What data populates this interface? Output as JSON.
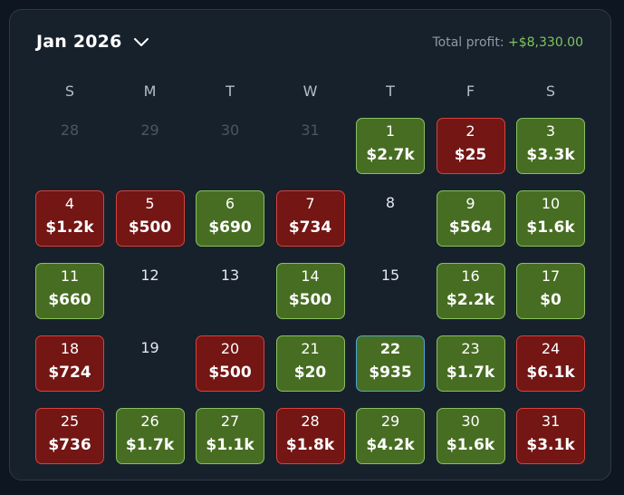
{
  "header": {
    "month_label": "Jan 2026",
    "profit_label": "Total profit:",
    "profit_value": "+$8,330.00"
  },
  "weekdays": [
    "S",
    "M",
    "T",
    "W",
    "T",
    "F",
    "S"
  ],
  "colors": {
    "win_bg": "#476d22",
    "win_border": "#88c060",
    "loss_bg": "#731614",
    "loss_border": "#d4433c",
    "today_border": "#4fa6d4",
    "profit_text": "#7fc560"
  },
  "weeks": [
    [
      {
        "day": "28",
        "status": "other"
      },
      {
        "day": "29",
        "status": "other"
      },
      {
        "day": "30",
        "status": "other"
      },
      {
        "day": "31",
        "status": "other"
      },
      {
        "day": "1",
        "status": "win",
        "amount": "$2.7k"
      },
      {
        "day": "2",
        "status": "loss",
        "amount": "$25"
      },
      {
        "day": "3",
        "status": "win",
        "amount": "$3.3k"
      }
    ],
    [
      {
        "day": "4",
        "status": "loss",
        "amount": "$1.2k"
      },
      {
        "day": "5",
        "status": "loss",
        "amount": "$500"
      },
      {
        "day": "6",
        "status": "win",
        "amount": "$690"
      },
      {
        "day": "7",
        "status": "loss",
        "amount": "$734"
      },
      {
        "day": "8",
        "status": "empty"
      },
      {
        "day": "9",
        "status": "win",
        "amount": "$564"
      },
      {
        "day": "10",
        "status": "win",
        "amount": "$1.6k"
      }
    ],
    [
      {
        "day": "11",
        "status": "win",
        "amount": "$660"
      },
      {
        "day": "12",
        "status": "empty"
      },
      {
        "day": "13",
        "status": "empty"
      },
      {
        "day": "14",
        "status": "win",
        "amount": "$500"
      },
      {
        "day": "15",
        "status": "empty"
      },
      {
        "day": "16",
        "status": "win",
        "amount": "$2.2k"
      },
      {
        "day": "17",
        "status": "win",
        "amount": "$0"
      }
    ],
    [
      {
        "day": "18",
        "status": "loss",
        "amount": "$724"
      },
      {
        "day": "19",
        "status": "empty"
      },
      {
        "day": "20",
        "status": "loss",
        "amount": "$500"
      },
      {
        "day": "21",
        "status": "win",
        "amount": "$20"
      },
      {
        "day": "22",
        "status": "win",
        "amount": "$935",
        "today": true
      },
      {
        "day": "23",
        "status": "win",
        "amount": "$1.7k"
      },
      {
        "day": "24",
        "status": "loss",
        "amount": "$6.1k"
      }
    ],
    [
      {
        "day": "25",
        "status": "loss",
        "amount": "$736"
      },
      {
        "day": "26",
        "status": "win",
        "amount": "$1.7k"
      },
      {
        "day": "27",
        "status": "win",
        "amount": "$1.1k"
      },
      {
        "day": "28",
        "status": "loss",
        "amount": "$1.8k"
      },
      {
        "day": "29",
        "status": "win",
        "amount": "$4.2k"
      },
      {
        "day": "30",
        "status": "win",
        "amount": "$1.6k"
      },
      {
        "day": "31",
        "status": "loss",
        "amount": "$3.1k"
      }
    ]
  ]
}
